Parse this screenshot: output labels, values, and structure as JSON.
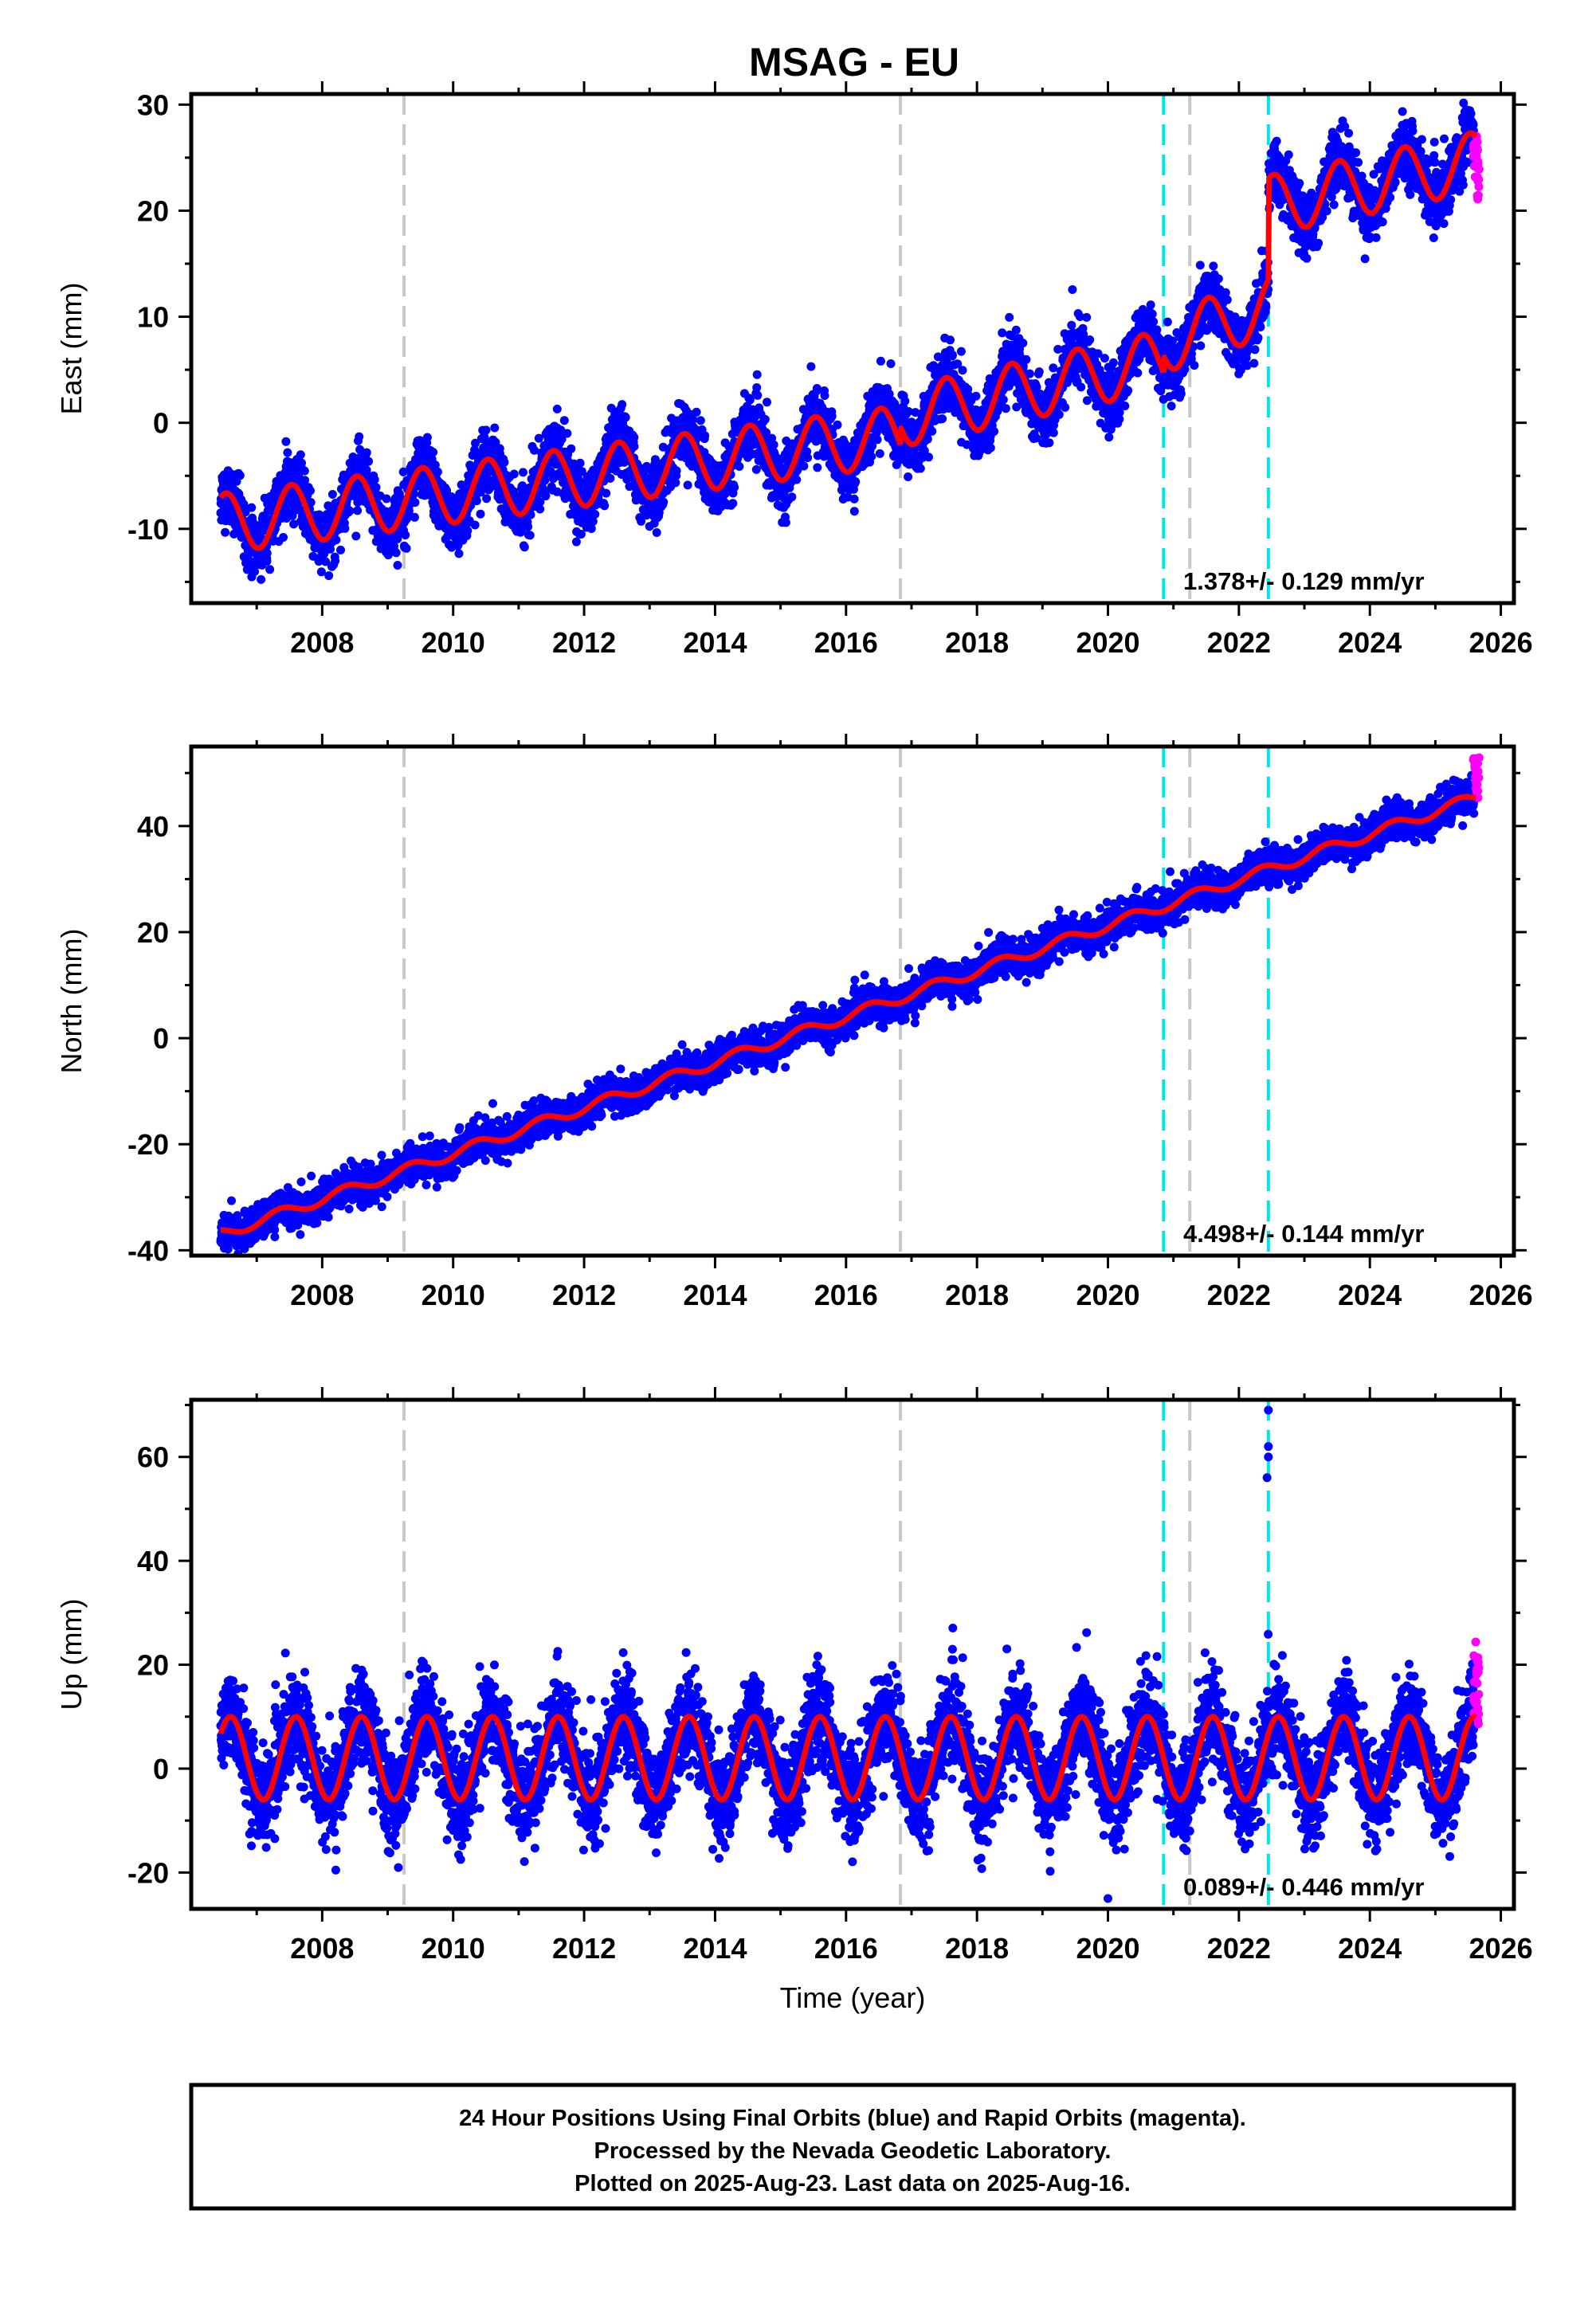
{
  "chart_data": {
    "type": "scatter",
    "title": "MSAG - EU",
    "xlabel": "Time (year)",
    "xlim": [
      2006.0,
      2026.2
    ],
    "xticks": [
      2008,
      2010,
      2012,
      2014,
      2016,
      2018,
      2020,
      2022,
      2024,
      2026
    ],
    "colors": {
      "final": "#0000ff",
      "rapid": "#ff00ff",
      "model": "#ff0000",
      "equipment_change": "#c8c8c8",
      "earthquake": "#00e5e5"
    },
    "event_lines": {
      "gray": [
        2009.25,
        2016.83,
        2021.25
      ],
      "cyan": [
        2020.85,
        2022.45
      ]
    },
    "panels": [
      {
        "name": "east",
        "ylabel": "East (mm)",
        "ylim": [
          -17,
          31
        ],
        "yticks": [
          -10,
          0,
          10,
          20,
          30
        ],
        "rate_text": "1.378+/- 0.129 mm/yr",
        "data_start": 2006.45,
        "model": {
          "segments": [
            {
              "from": 2006.45,
              "to": 2016.83,
              "offset": -9.5,
              "rate": 0.8
            },
            {
              "from": 2016.83,
              "to": 2020.85,
              "offset": 0.5,
              "rate": 1.35
            },
            {
              "from": 2020.85,
              "to": 2022.45,
              "offset": 7.5,
              "rate": 2.2
            },
            {
              "from": 2022.45,
              "to": 2025.62,
              "offset": 20.5,
              "rate": 1.3
            }
          ],
          "amp": 2.8,
          "phase": 0.28,
          "noise": 1.4
        },
        "rapid_range": [
          21,
          27
        ]
      },
      {
        "name": "north",
        "ylabel": "North (mm)",
        "ylim": [
          -41,
          55
        ],
        "yticks": [
          -40,
          -20,
          0,
          20,
          40
        ],
        "rate_text": "4.498+/- 0.144 mm/yr",
        "data_start": 2006.45,
        "model": {
          "segments": [
            {
              "from": 2006.45,
              "to": 2025.62,
              "offset": -37.0,
              "rate": 4.3
            }
          ],
          "amp": 1.0,
          "phase": 0.1,
          "noise": 1.6
        },
        "rapid_range": [
          45,
          53
        ]
      },
      {
        "name": "up",
        "ylabel": "Up (mm)",
        "ylim": [
          -27,
          71
        ],
        "yticks": [
          -20,
          0,
          20,
          40,
          60
        ],
        "rate_text": "0.089+/- 0.446 mm/yr",
        "data_start": 2006.45,
        "model": {
          "segments": [
            {
              "from": 2006.45,
              "to": 2025.62,
              "offset": 2.0,
              "rate": 0.0
            }
          ],
          "amp": 8.0,
          "phase": 0.35,
          "noise": 4.5
        },
        "outliers": [
          {
            "x": 2022.45,
            "y": 69
          },
          {
            "x": 2022.45,
            "y": 62
          },
          {
            "x": 2022.45,
            "y": 60
          },
          {
            "x": 2022.43,
            "y": 56
          },
          {
            "x": 2020.0,
            "y": -25
          }
        ],
        "rapid_range": [
          8,
          25
        ]
      }
    ]
  },
  "footer": {
    "line1": "24 Hour Positions Using Final Orbits (blue) and Rapid Orbits (magenta).",
    "line2": "Processed by the Nevada Geodetic Laboratory.",
    "line3": "Plotted on 2025-Aug-23. Last data on 2025-Aug-16."
  }
}
